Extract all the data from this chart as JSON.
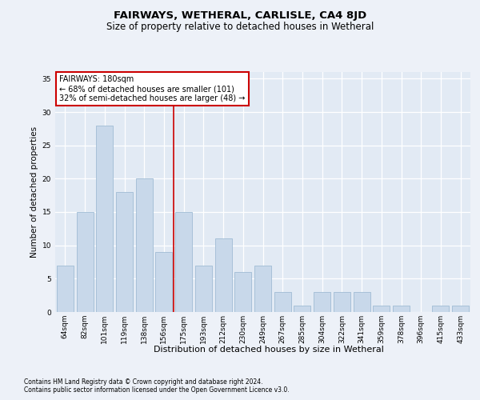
{
  "title1": "FAIRWAYS, WETHERAL, CARLISLE, CA4 8JD",
  "title2": "Size of property relative to detached houses in Wetheral",
  "xlabel": "Distribution of detached houses by size in Wetheral",
  "ylabel": "Number of detached properties",
  "categories": [
    "64sqm",
    "82sqm",
    "101sqm",
    "119sqm",
    "138sqm",
    "156sqm",
    "175sqm",
    "193sqm",
    "212sqm",
    "230sqm",
    "249sqm",
    "267sqm",
    "285sqm",
    "304sqm",
    "322sqm",
    "341sqm",
    "359sqm",
    "378sqm",
    "396sqm",
    "415sqm",
    "433sqm"
  ],
  "values": [
    7,
    15,
    28,
    18,
    20,
    9,
    15,
    7,
    11,
    6,
    7,
    3,
    1,
    3,
    3,
    3,
    1,
    1,
    0,
    1,
    1
  ],
  "bar_color": "#c8d8ea",
  "bar_edge_color": "#a0bcd4",
  "highlight_color": "#cc0000",
  "annotation_title": "FAIRWAYS: 180sqm",
  "annotation_line1": "← 68% of detached houses are smaller (101)",
  "annotation_line2": "32% of semi-detached houses are larger (48) →",
  "ylim": [
    0,
    36
  ],
  "yticks": [
    0,
    5,
    10,
    15,
    20,
    25,
    30,
    35
  ],
  "bg_color": "#edf1f8",
  "plot_bg_color": "#e2eaf4",
  "footer1": "Contains HM Land Registry data © Crown copyright and database right 2024.",
  "footer2": "Contains public sector information licensed under the Open Government Licence v3.0.",
  "title1_fontsize": 9.5,
  "title2_fontsize": 8.5,
  "xlabel_fontsize": 8,
  "ylabel_fontsize": 7.5,
  "tick_fontsize": 6.5,
  "ann_fontsize": 7,
  "footer_fontsize": 5.5
}
